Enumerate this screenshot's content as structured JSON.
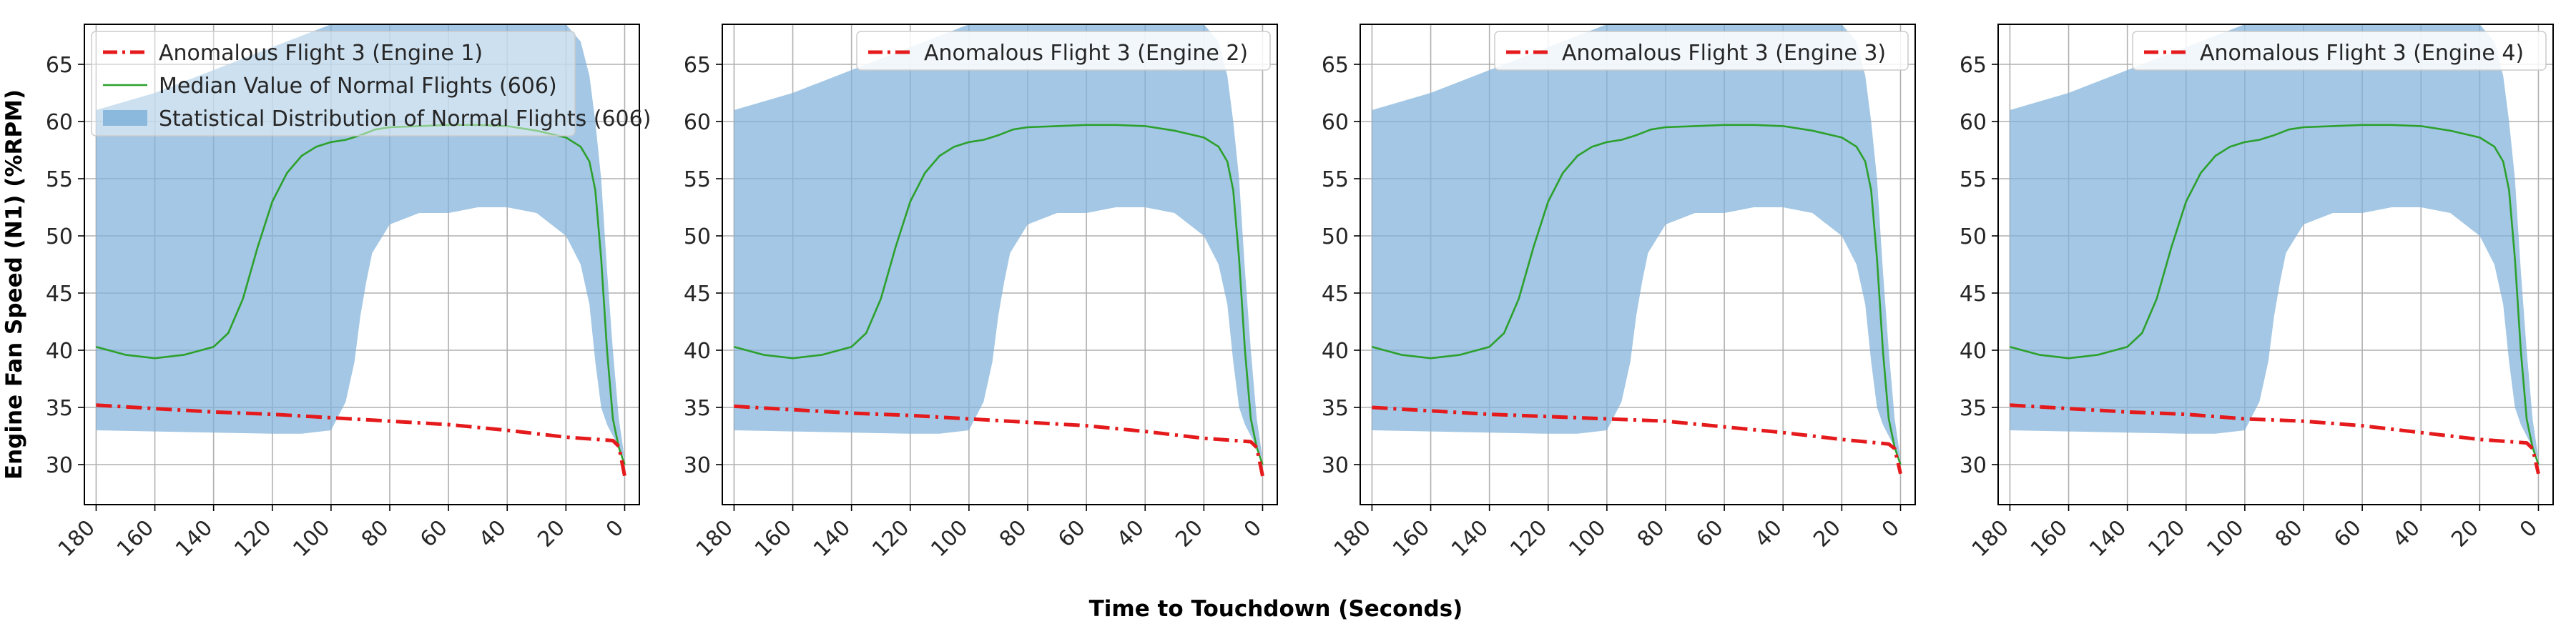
{
  "figure": {
    "ylabel": "Engine Fan Speed (N1) (%RPM)",
    "xlabel": "Time to Touchdown (Seconds)"
  },
  "colors": {
    "anomalous": "#e41a1c",
    "median": "#2ca02c",
    "distribution": "#7fb1d9"
  },
  "chart_data": [
    {
      "type": "line",
      "panel": "Engine 1",
      "xlim": [
        184,
        -5
      ],
      "ylim": [
        26.5,
        68.5
      ],
      "xticks": [
        180,
        160,
        140,
        120,
        100,
        80,
        60,
        40,
        20,
        0
      ],
      "yticks": [
        30,
        35,
        40,
        45,
        50,
        55,
        60,
        65
      ],
      "grid": true,
      "legend_placement": "top-left",
      "legend": [
        "Anomalous Flight 3 (Engine 1)",
        "Median Value of Normal Flights (606)",
        "Statistical Distribution of Normal Flights (606)"
      ],
      "series": [
        {
          "name": "Anomalous Flight 3 (Engine 1)",
          "style": "dash-dot",
          "x": [
            180,
            160,
            140,
            120,
            100,
            80,
            60,
            40,
            20,
            4,
            2,
            0
          ],
          "values": [
            35.2,
            34.9,
            34.6,
            34.4,
            34.1,
            33.8,
            33.5,
            33.0,
            32.4,
            32.1,
            31.6,
            29.0
          ]
        },
        {
          "name": "Median Value of Normal Flights (606)",
          "style": "solid",
          "x": [
            180,
            170,
            160,
            150,
            140,
            135,
            130,
            125,
            120,
            115,
            110,
            105,
            100,
            95,
            90,
            85,
            80,
            70,
            60,
            50,
            40,
            30,
            20,
            15,
            12,
            10,
            8,
            6,
            4,
            2,
            0
          ],
          "values": [
            40.3,
            39.6,
            39.3,
            39.6,
            40.3,
            41.5,
            44.5,
            49.0,
            53.0,
            55.5,
            57.0,
            57.8,
            58.2,
            58.4,
            58.8,
            59.3,
            59.5,
            59.6,
            59.7,
            59.7,
            59.6,
            59.2,
            58.6,
            57.8,
            56.5,
            54.0,
            48.0,
            40.0,
            34.0,
            31.5,
            30.0
          ]
        },
        {
          "name": "Statistical Distribution of Normal Flights (606)",
          "style": "band",
          "x": [
            180,
            160,
            140,
            120,
            110,
            100,
            95,
            92,
            90,
            88,
            86,
            80,
            70,
            60,
            50,
            40,
            30,
            20,
            15,
            12,
            10,
            8,
            6,
            4,
            2,
            0
          ],
          "upper": [
            61.0,
            62.5,
            64.5,
            66.5,
            67.5,
            68.5,
            68.5,
            68.5,
            68.5,
            68.5,
            68.5,
            68.5,
            68.5,
            68.5,
            68.5,
            68.5,
            68.5,
            68.5,
            67.0,
            64.0,
            60.0,
            55.0,
            47.0,
            40.0,
            34.0,
            30.5
          ],
          "lower": [
            33.0,
            32.9,
            32.8,
            32.7,
            32.7,
            33.0,
            35.5,
            39.0,
            43.0,
            46.0,
            48.5,
            51.0,
            52.0,
            52.0,
            52.5,
            52.5,
            52.0,
            50.0,
            47.5,
            44.0,
            39.0,
            35.0,
            33.5,
            32.5,
            31.5,
            30.5
          ]
        }
      ]
    },
    {
      "type": "line",
      "panel": "Engine 2",
      "xlim": [
        184,
        -5
      ],
      "ylim": [
        26.5,
        68.5
      ],
      "xticks": [
        180,
        160,
        140,
        120,
        100,
        80,
        60,
        40,
        20,
        0
      ],
      "yticks": [
        30,
        35,
        40,
        45,
        50,
        55,
        60,
        65
      ],
      "grid": true,
      "legend_placement": "top-right",
      "legend": [
        "Anomalous Flight 3 (Engine 2)"
      ],
      "series": [
        {
          "name": "Anomalous Flight 3 (Engine 2)",
          "style": "dash-dot",
          "x": [
            180,
            160,
            140,
            120,
            100,
            80,
            60,
            40,
            20,
            4,
            2,
            0
          ],
          "values": [
            35.1,
            34.8,
            34.5,
            34.3,
            34.0,
            33.7,
            33.4,
            32.9,
            32.3,
            32.0,
            31.5,
            29.0
          ]
        },
        {
          "name": "Median Value of Normal Flights (606)",
          "style": "solid",
          "x": [
            180,
            170,
            160,
            150,
            140,
            135,
            130,
            125,
            120,
            115,
            110,
            105,
            100,
            95,
            90,
            85,
            80,
            70,
            60,
            50,
            40,
            30,
            20,
            15,
            12,
            10,
            8,
            6,
            4,
            2,
            0
          ],
          "values": [
            40.3,
            39.6,
            39.3,
            39.6,
            40.3,
            41.5,
            44.5,
            49.0,
            53.0,
            55.5,
            57.0,
            57.8,
            58.2,
            58.4,
            58.8,
            59.3,
            59.5,
            59.6,
            59.7,
            59.7,
            59.6,
            59.2,
            58.6,
            57.8,
            56.5,
            54.0,
            48.0,
            40.0,
            34.0,
            31.5,
            30.0
          ]
        },
        {
          "name": "Statistical Distribution of Normal Flights (606)",
          "style": "band",
          "x": [
            180,
            160,
            140,
            120,
            110,
            100,
            95,
            92,
            90,
            88,
            86,
            80,
            70,
            60,
            50,
            40,
            30,
            20,
            15,
            12,
            10,
            8,
            6,
            4,
            2,
            0
          ],
          "upper": [
            61.0,
            62.5,
            64.5,
            66.5,
            67.5,
            68.5,
            68.5,
            68.5,
            68.5,
            68.5,
            68.5,
            68.5,
            68.5,
            68.5,
            68.5,
            68.5,
            68.5,
            68.5,
            67.0,
            64.0,
            60.0,
            55.0,
            47.0,
            40.0,
            34.0,
            30.5
          ],
          "lower": [
            33.0,
            32.9,
            32.8,
            32.7,
            32.7,
            33.0,
            35.5,
            39.0,
            43.0,
            46.0,
            48.5,
            51.0,
            52.0,
            52.0,
            52.5,
            52.5,
            52.0,
            50.0,
            47.5,
            44.0,
            39.0,
            35.0,
            33.5,
            32.5,
            31.5,
            30.5
          ]
        }
      ]
    },
    {
      "type": "line",
      "panel": "Engine 3",
      "xlim": [
        184,
        -5
      ],
      "ylim": [
        26.5,
        68.5
      ],
      "xticks": [
        180,
        160,
        140,
        120,
        100,
        80,
        60,
        40,
        20,
        0
      ],
      "yticks": [
        30,
        35,
        40,
        45,
        50,
        55,
        60,
        65
      ],
      "grid": true,
      "legend_placement": "top-right",
      "legend": [
        "Anomalous Flight 3 (Engine 3)"
      ],
      "series": [
        {
          "name": "Anomalous Flight 3 (Engine 3)",
          "style": "dash-dot",
          "x": [
            180,
            160,
            140,
            120,
            100,
            80,
            60,
            40,
            20,
            4,
            2,
            0
          ],
          "values": [
            35.0,
            34.7,
            34.4,
            34.2,
            34.0,
            33.8,
            33.3,
            32.8,
            32.2,
            31.8,
            31.4,
            29.2
          ]
        },
        {
          "name": "Median Value of Normal Flights (606)",
          "style": "solid",
          "x": [
            180,
            170,
            160,
            150,
            140,
            135,
            130,
            125,
            120,
            115,
            110,
            105,
            100,
            95,
            90,
            85,
            80,
            70,
            60,
            50,
            40,
            30,
            20,
            15,
            12,
            10,
            8,
            6,
            4,
            2,
            0
          ],
          "values": [
            40.3,
            39.6,
            39.3,
            39.6,
            40.3,
            41.5,
            44.5,
            49.0,
            53.0,
            55.5,
            57.0,
            57.8,
            58.2,
            58.4,
            58.8,
            59.3,
            59.5,
            59.6,
            59.7,
            59.7,
            59.6,
            59.2,
            58.6,
            57.8,
            56.5,
            54.0,
            48.0,
            40.0,
            34.0,
            31.5,
            30.0
          ]
        },
        {
          "name": "Statistical Distribution of Normal Flights (606)",
          "style": "band",
          "x": [
            180,
            160,
            140,
            120,
            110,
            100,
            95,
            92,
            90,
            88,
            86,
            80,
            70,
            60,
            50,
            40,
            30,
            20,
            15,
            12,
            10,
            8,
            6,
            4,
            2,
            0
          ],
          "upper": [
            61.0,
            62.5,
            64.5,
            66.5,
            67.5,
            68.5,
            68.5,
            68.5,
            68.5,
            68.5,
            68.5,
            68.5,
            68.5,
            68.5,
            68.5,
            68.5,
            68.5,
            68.5,
            67.0,
            64.0,
            60.0,
            55.0,
            47.0,
            40.0,
            34.0,
            30.5
          ],
          "lower": [
            33.0,
            32.9,
            32.8,
            32.7,
            32.7,
            33.0,
            35.5,
            39.0,
            43.0,
            46.0,
            48.5,
            51.0,
            52.0,
            52.0,
            52.5,
            52.5,
            52.0,
            50.0,
            47.5,
            44.0,
            39.0,
            35.0,
            33.5,
            32.5,
            31.5,
            30.5
          ]
        }
      ]
    },
    {
      "type": "line",
      "panel": "Engine 4",
      "xlim": [
        184,
        -5
      ],
      "ylim": [
        26.5,
        68.5
      ],
      "xticks": [
        180,
        160,
        140,
        120,
        100,
        80,
        60,
        40,
        20,
        0
      ],
      "yticks": [
        30,
        35,
        40,
        45,
        50,
        55,
        60,
        65
      ],
      "grid": true,
      "legend_placement": "top-right",
      "legend": [
        "Anomalous Flight 3 (Engine 4)"
      ],
      "series": [
        {
          "name": "Anomalous Flight 3 (Engine 4)",
          "style": "dash-dot",
          "x": [
            180,
            160,
            140,
            120,
            100,
            80,
            60,
            40,
            20,
            4,
            2,
            0
          ],
          "values": [
            35.2,
            34.9,
            34.6,
            34.4,
            34.0,
            33.8,
            33.4,
            32.8,
            32.2,
            31.9,
            31.4,
            29.2
          ]
        },
        {
          "name": "Median Value of Normal Flights (606)",
          "style": "solid",
          "x": [
            180,
            170,
            160,
            150,
            140,
            135,
            130,
            125,
            120,
            115,
            110,
            105,
            100,
            95,
            90,
            85,
            80,
            70,
            60,
            50,
            40,
            30,
            20,
            15,
            12,
            10,
            8,
            6,
            4,
            2,
            0
          ],
          "values": [
            40.3,
            39.6,
            39.3,
            39.6,
            40.3,
            41.5,
            44.5,
            49.0,
            53.0,
            55.5,
            57.0,
            57.8,
            58.2,
            58.4,
            58.8,
            59.3,
            59.5,
            59.6,
            59.7,
            59.7,
            59.6,
            59.2,
            58.6,
            57.8,
            56.5,
            54.0,
            48.0,
            40.0,
            34.0,
            31.5,
            30.0
          ]
        },
        {
          "name": "Statistical Distribution of Normal Flights (606)",
          "style": "band",
          "x": [
            180,
            160,
            140,
            120,
            110,
            100,
            95,
            92,
            90,
            88,
            86,
            80,
            70,
            60,
            50,
            40,
            30,
            20,
            15,
            12,
            10,
            8,
            6,
            4,
            2,
            0
          ],
          "upper": [
            61.0,
            62.5,
            64.5,
            66.5,
            67.5,
            68.5,
            68.5,
            68.5,
            68.5,
            68.5,
            68.5,
            68.5,
            68.5,
            68.5,
            68.5,
            68.5,
            68.5,
            68.5,
            67.0,
            64.0,
            60.0,
            55.0,
            47.0,
            40.0,
            34.0,
            30.5
          ],
          "lower": [
            33.0,
            32.9,
            32.8,
            32.7,
            32.7,
            33.0,
            35.5,
            39.0,
            43.0,
            46.0,
            48.5,
            51.0,
            52.0,
            52.0,
            52.5,
            52.5,
            52.0,
            50.0,
            47.5,
            44.0,
            39.0,
            35.0,
            33.5,
            32.5,
            31.5,
            30.5
          ]
        }
      ]
    }
  ]
}
